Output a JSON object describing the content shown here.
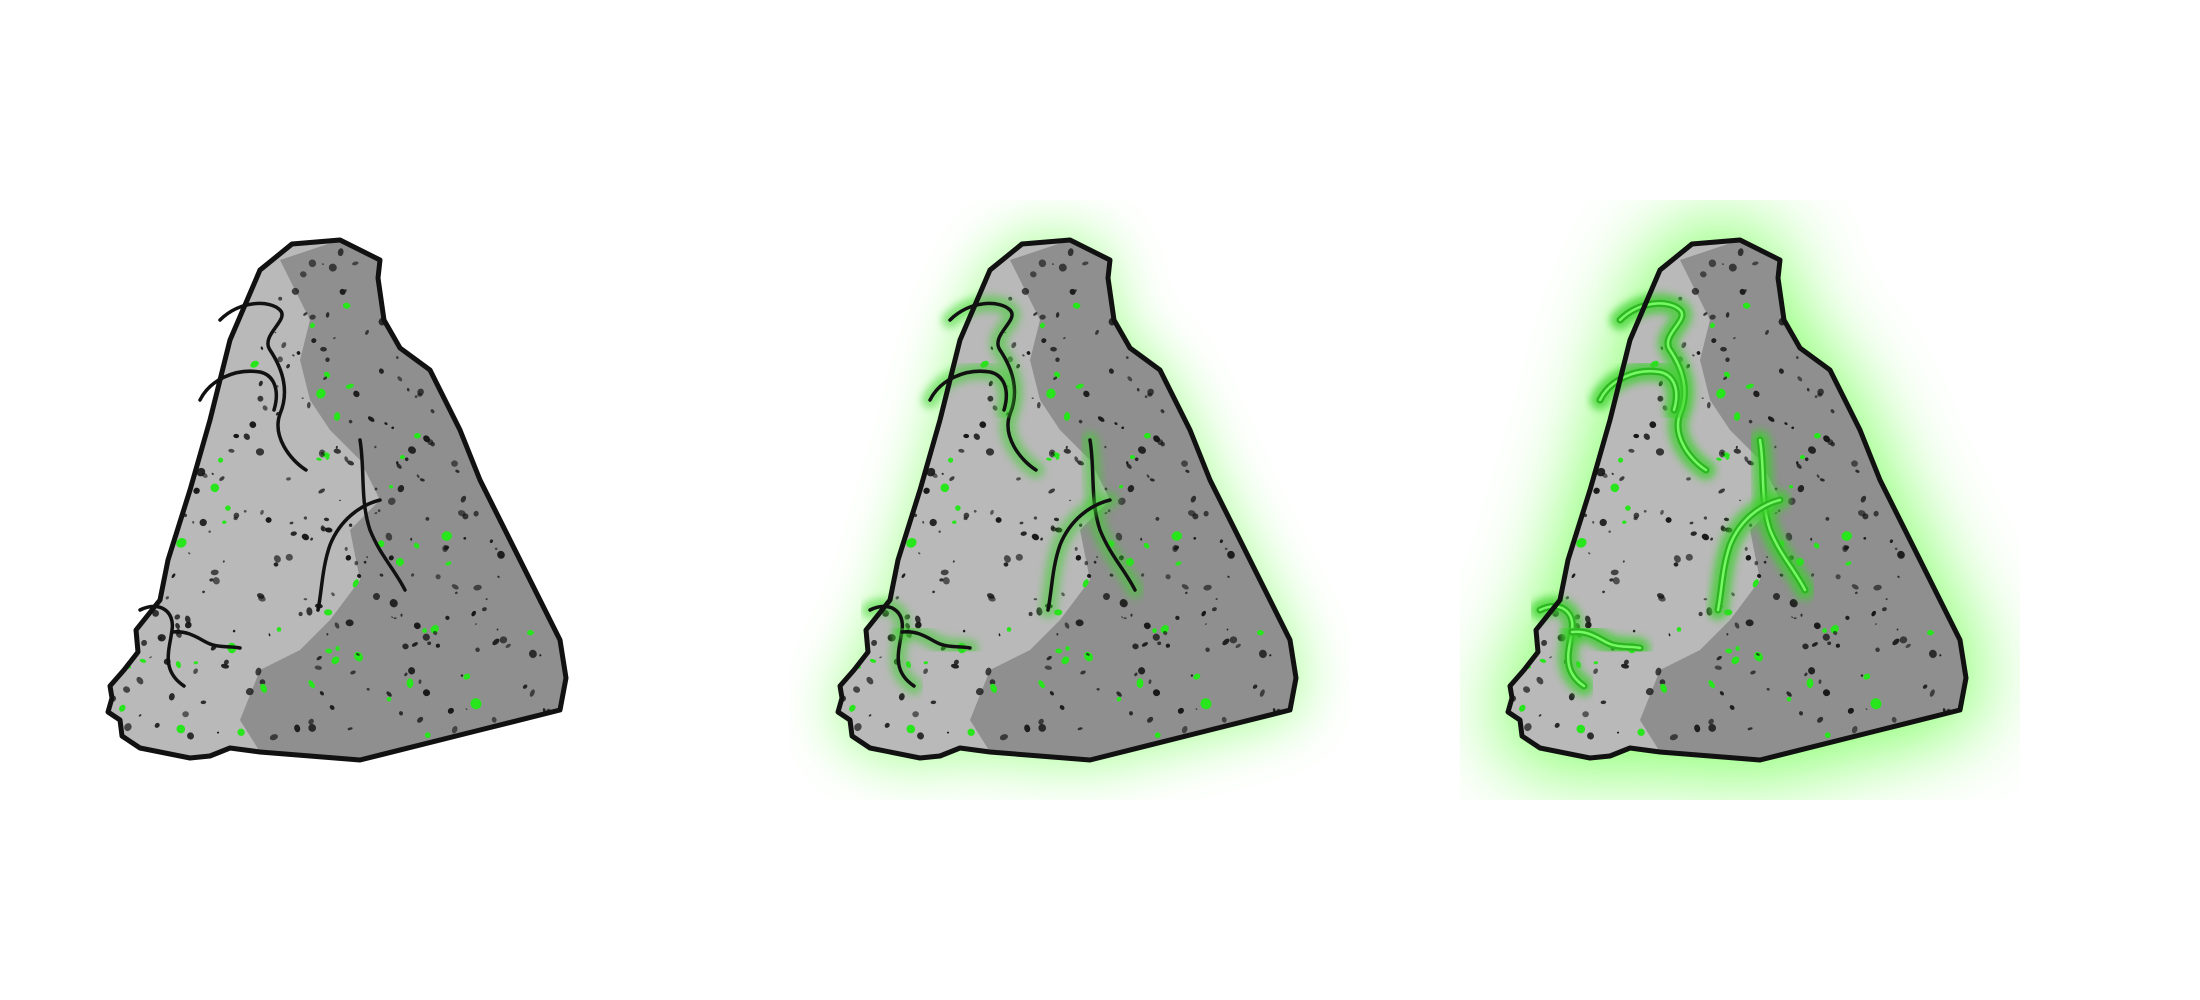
{
  "scene": {
    "background_color": "#ffffff",
    "rocks": [
      {
        "variant": "dormant",
        "glow_intensity": 0,
        "rune_state": "unlit",
        "speck_color": "#27e61b"
      },
      {
        "variant": "awakening",
        "glow_intensity": 0.45,
        "rune_state": "half-lit",
        "speck_color": "#27e61b"
      },
      {
        "variant": "fully-charged",
        "glow_intensity": 1,
        "rune_state": "lit",
        "speck_color": "#27e61b"
      }
    ],
    "palette": {
      "outline": "#111111",
      "stone_light": "#b9b9b9",
      "stone_dark": "#8f8f8f",
      "glow": "#6fff4f",
      "rune_lit": "#3ad12a"
    }
  }
}
